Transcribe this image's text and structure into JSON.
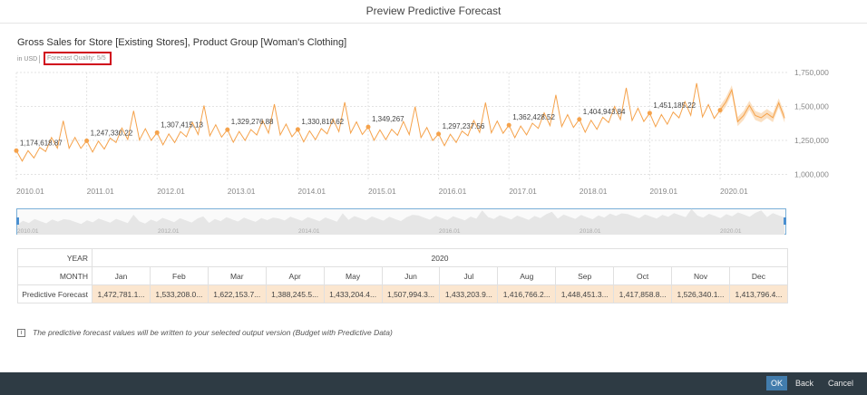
{
  "window": {
    "title": "Preview Predictive Forecast"
  },
  "header": {
    "chart_title": "Gross Sales for Store [Existing Stores], Product Group [Woman's Clothing]",
    "unit": "in USD",
    "forecast_quality": "Forecast Quality: 5/5"
  },
  "colors": {
    "series": "#f5a24b",
    "forecast_band": "#f9d3a8",
    "navigator_area": "#e6e6e6",
    "ok_button": "#427cac",
    "footer": "#2e3b44"
  },
  "chart_data": {
    "type": "line",
    "y_ticks": [
      "1,750,000",
      "1,500,000",
      "1,250,000",
      "1,000,000"
    ],
    "y_tick_values": [
      1750000,
      1500000,
      1250000,
      1000000
    ],
    "ylim": [
      950000,
      1750000
    ],
    "x_ticks": [
      "2010.01",
      "2011.01",
      "2012.01",
      "2013.01",
      "2014.01",
      "2015.01",
      "2016.01",
      "2017.01",
      "2018.01",
      "2019.01",
      "2020.01"
    ],
    "annotations": [
      {
        "label": "1,174,618.87",
        "year": 2010,
        "value": 1174618.87
      },
      {
        "label": "1,247,330.22",
        "year": 2011,
        "value": 1247330.22
      },
      {
        "label": "1,307,415.13",
        "year": 2012,
        "value": 1307415.13
      },
      {
        "label": "1,329,276.88",
        "year": 2013,
        "value": 1329276.88
      },
      {
        "label": "1,330,810.62",
        "year": 2014,
        "value": 1330810.62
      },
      {
        "label": "1,349,267",
        "year": 2015,
        "value": 1349267
      },
      {
        "label": "1,297,237.56",
        "year": 2016,
        "value": 1297237.56
      },
      {
        "label": "1,362,428.52",
        "year": 2017,
        "value": 1362428.52
      },
      {
        "label": "1,404,943.84",
        "year": 2018,
        "value": 1404943.84
      },
      {
        "label": "1,451,185.22",
        "year": 2019,
        "value": 1451185.22
      }
    ],
    "jan_2020_value": 1472781.1,
    "navigator_ticks": [
      "2010.01",
      "2012.01",
      "2014.01",
      "2016.01",
      "2018.01",
      "2020.01"
    ]
  },
  "table": {
    "year_header": "YEAR",
    "year_value": "2020",
    "month_header": "MONTH",
    "months": [
      "Jan",
      "Feb",
      "Mar",
      "Apr",
      "May",
      "Jun",
      "Jul",
      "Aug",
      "Sep",
      "Oct",
      "Nov",
      "Dec"
    ],
    "row_label": "Predictive Forecast",
    "values": [
      "1,472,781.1...",
      "1,533,208.0...",
      "1,622,153.7...",
      "1,388,245.5...",
      "1,433,204.4...",
      "1,507,994.3...",
      "1,433,203.9...",
      "1,416,766.2...",
      "1,448,451.3...",
      "1,417,858.8...",
      "1,526,340.1...",
      "1,413,796.4..."
    ]
  },
  "info": {
    "text": "The predictive forecast values will be written to your selected output version (Budget with Predictive Data)"
  },
  "footer": {
    "ok": "OK",
    "back": "Back",
    "cancel": "Cancel"
  }
}
